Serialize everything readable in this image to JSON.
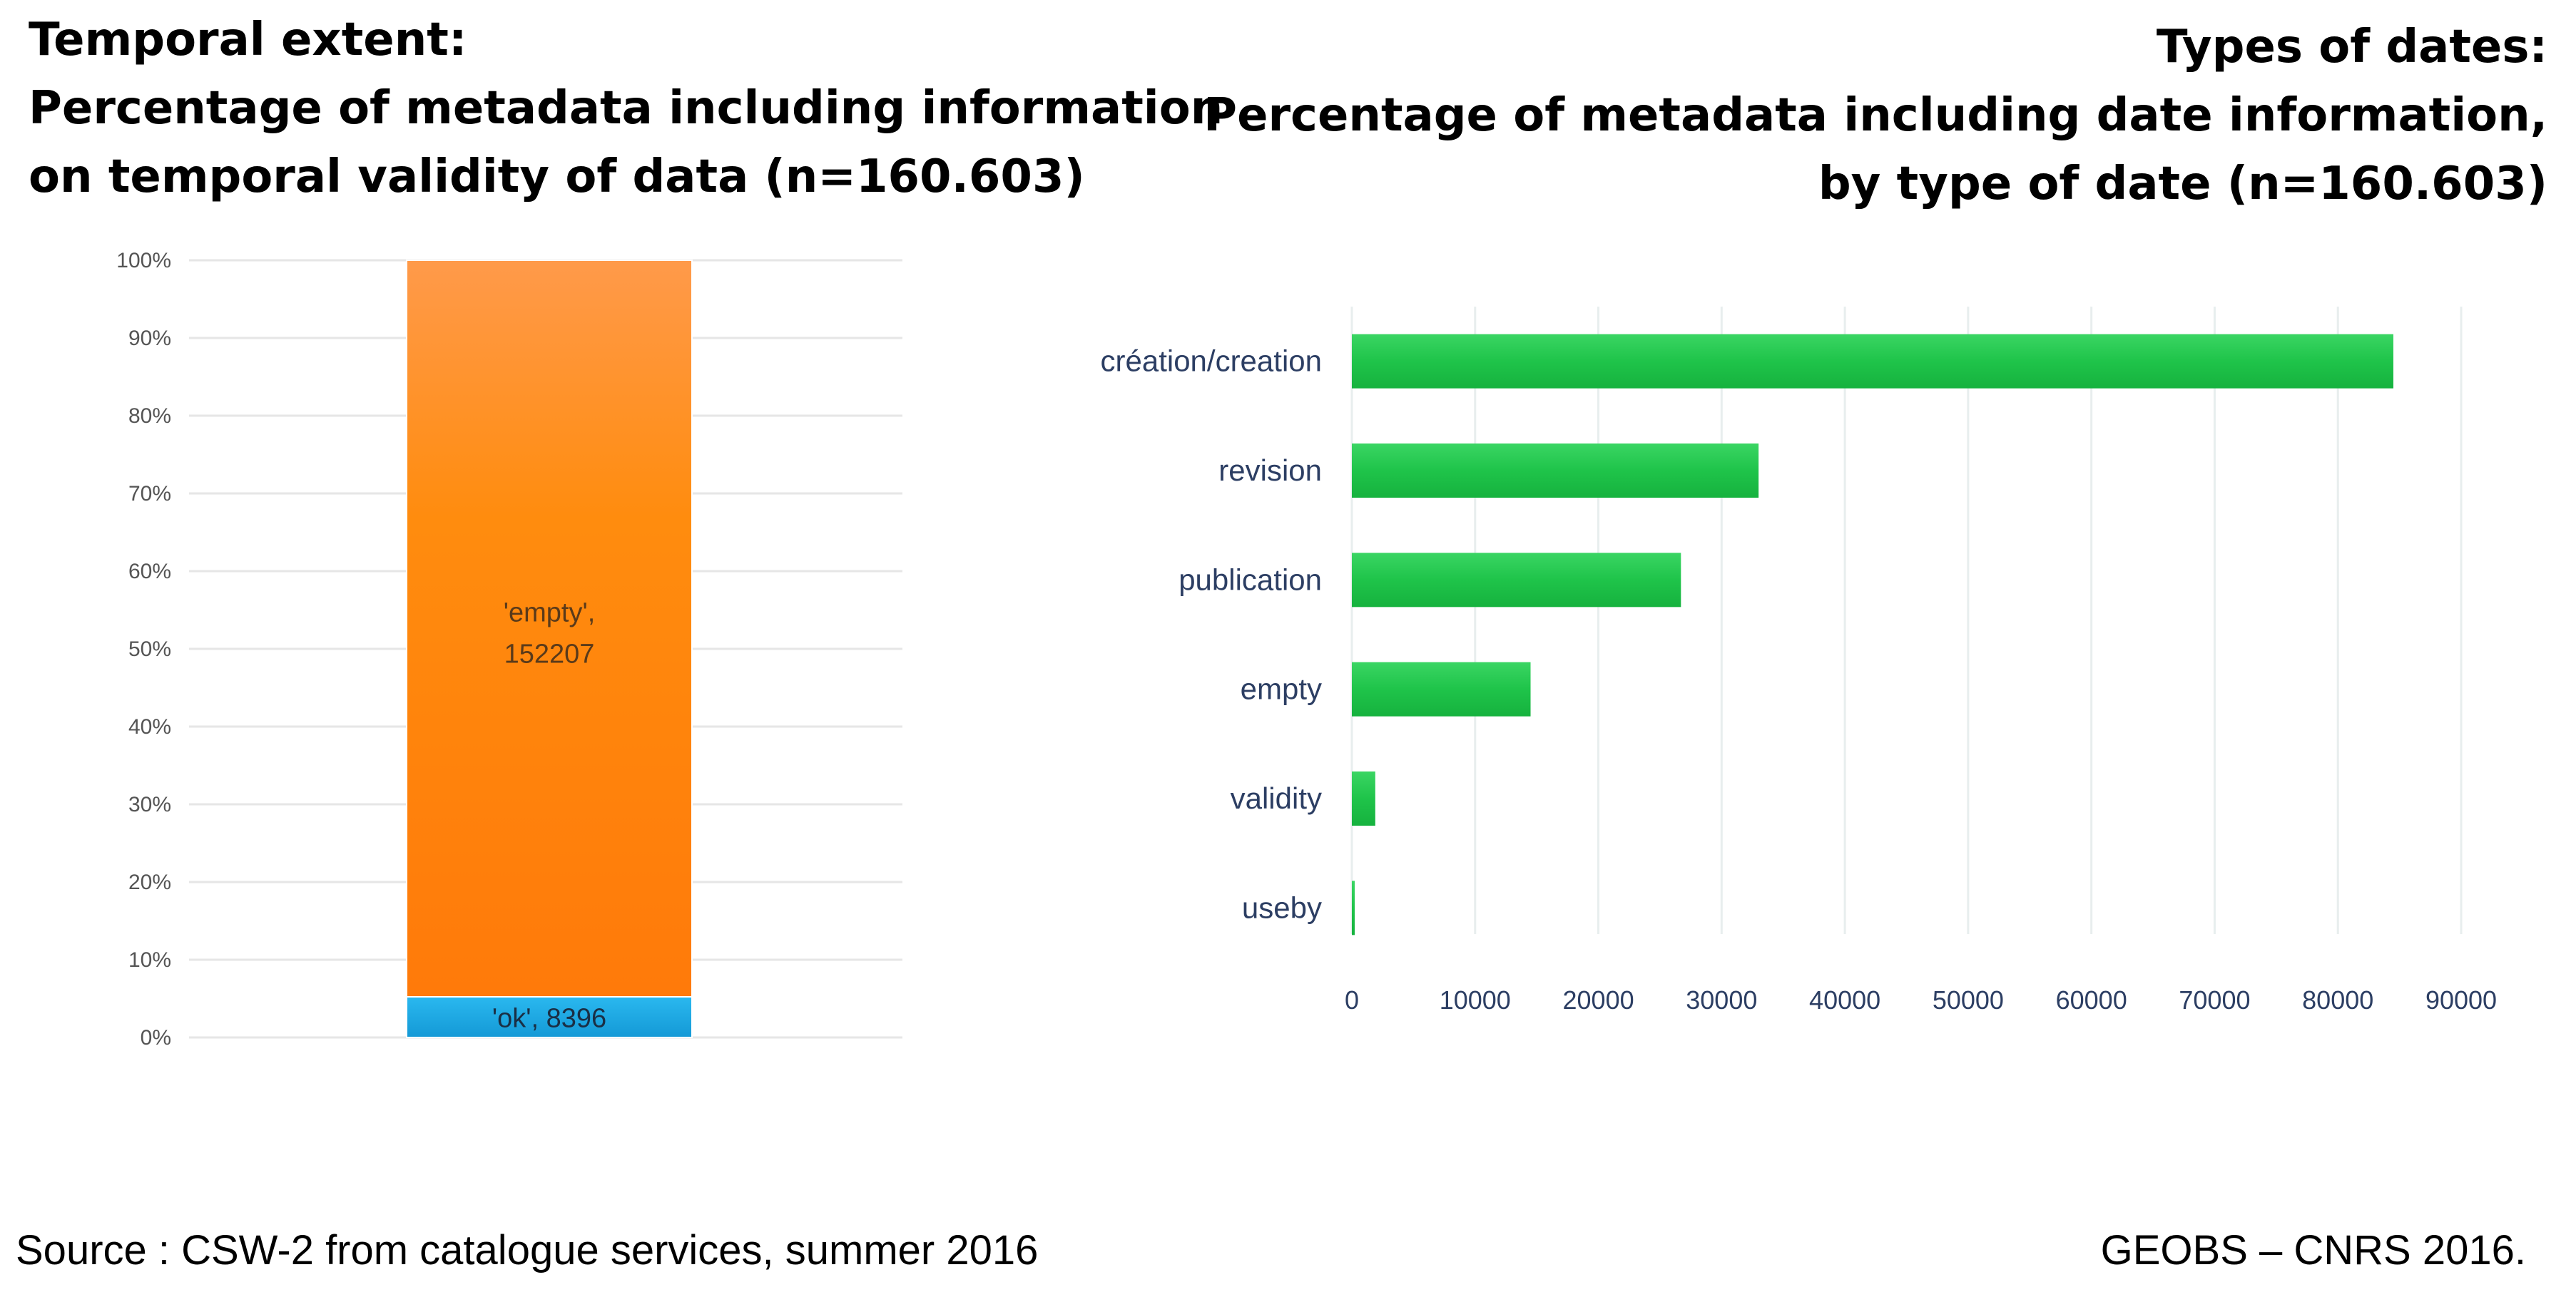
{
  "left_title": {
    "line1": "Temporal extent:",
    "line2": "Percentage of metadata including information",
    "line3": "on temporal validity of data (n=160.603)"
  },
  "right_title": {
    "line1": "Types of dates:",
    "line2": "Percentage of metadata including date information,",
    "line3": "by type of date (n=160.603)"
  },
  "chart_data": [
    {
      "type": "bar",
      "stacked": true,
      "orientation": "vertical",
      "y_ticks": [
        "0%",
        "10%",
        "20%",
        "30%",
        "40%",
        "50%",
        "60%",
        "70%",
        "80%",
        "90%",
        "100%"
      ],
      "ylim": [
        0,
        100
      ],
      "series": [
        {
          "name": "'ok'",
          "value": 8396,
          "label": "'ok', 8396",
          "color": "#1ea7e1"
        },
        {
          "name": "'empty'",
          "value": 152207,
          "label_line1": "'empty',",
          "label_line2": "152207",
          "color": "#ff8a1e"
        }
      ],
      "total": 160603
    },
    {
      "type": "bar",
      "orientation": "horizontal",
      "categories": [
        "création/creation",
        "revision",
        "publication",
        "empty",
        "validity",
        "useby"
      ],
      "values": [
        84500,
        33000,
        26700,
        14500,
        1900,
        150
      ],
      "xlim": [
        0,
        90000
      ],
      "x_ticks": [
        "0",
        "10000",
        "20000",
        "30000",
        "40000",
        "50000",
        "60000",
        "70000",
        "80000",
        "90000"
      ],
      "color": "#1fc44a"
    }
  ],
  "footer": {
    "source": "Source : CSW-2 from catalogue services, summer 2016",
    "credit": "GEOBS – CNRS 2016."
  }
}
